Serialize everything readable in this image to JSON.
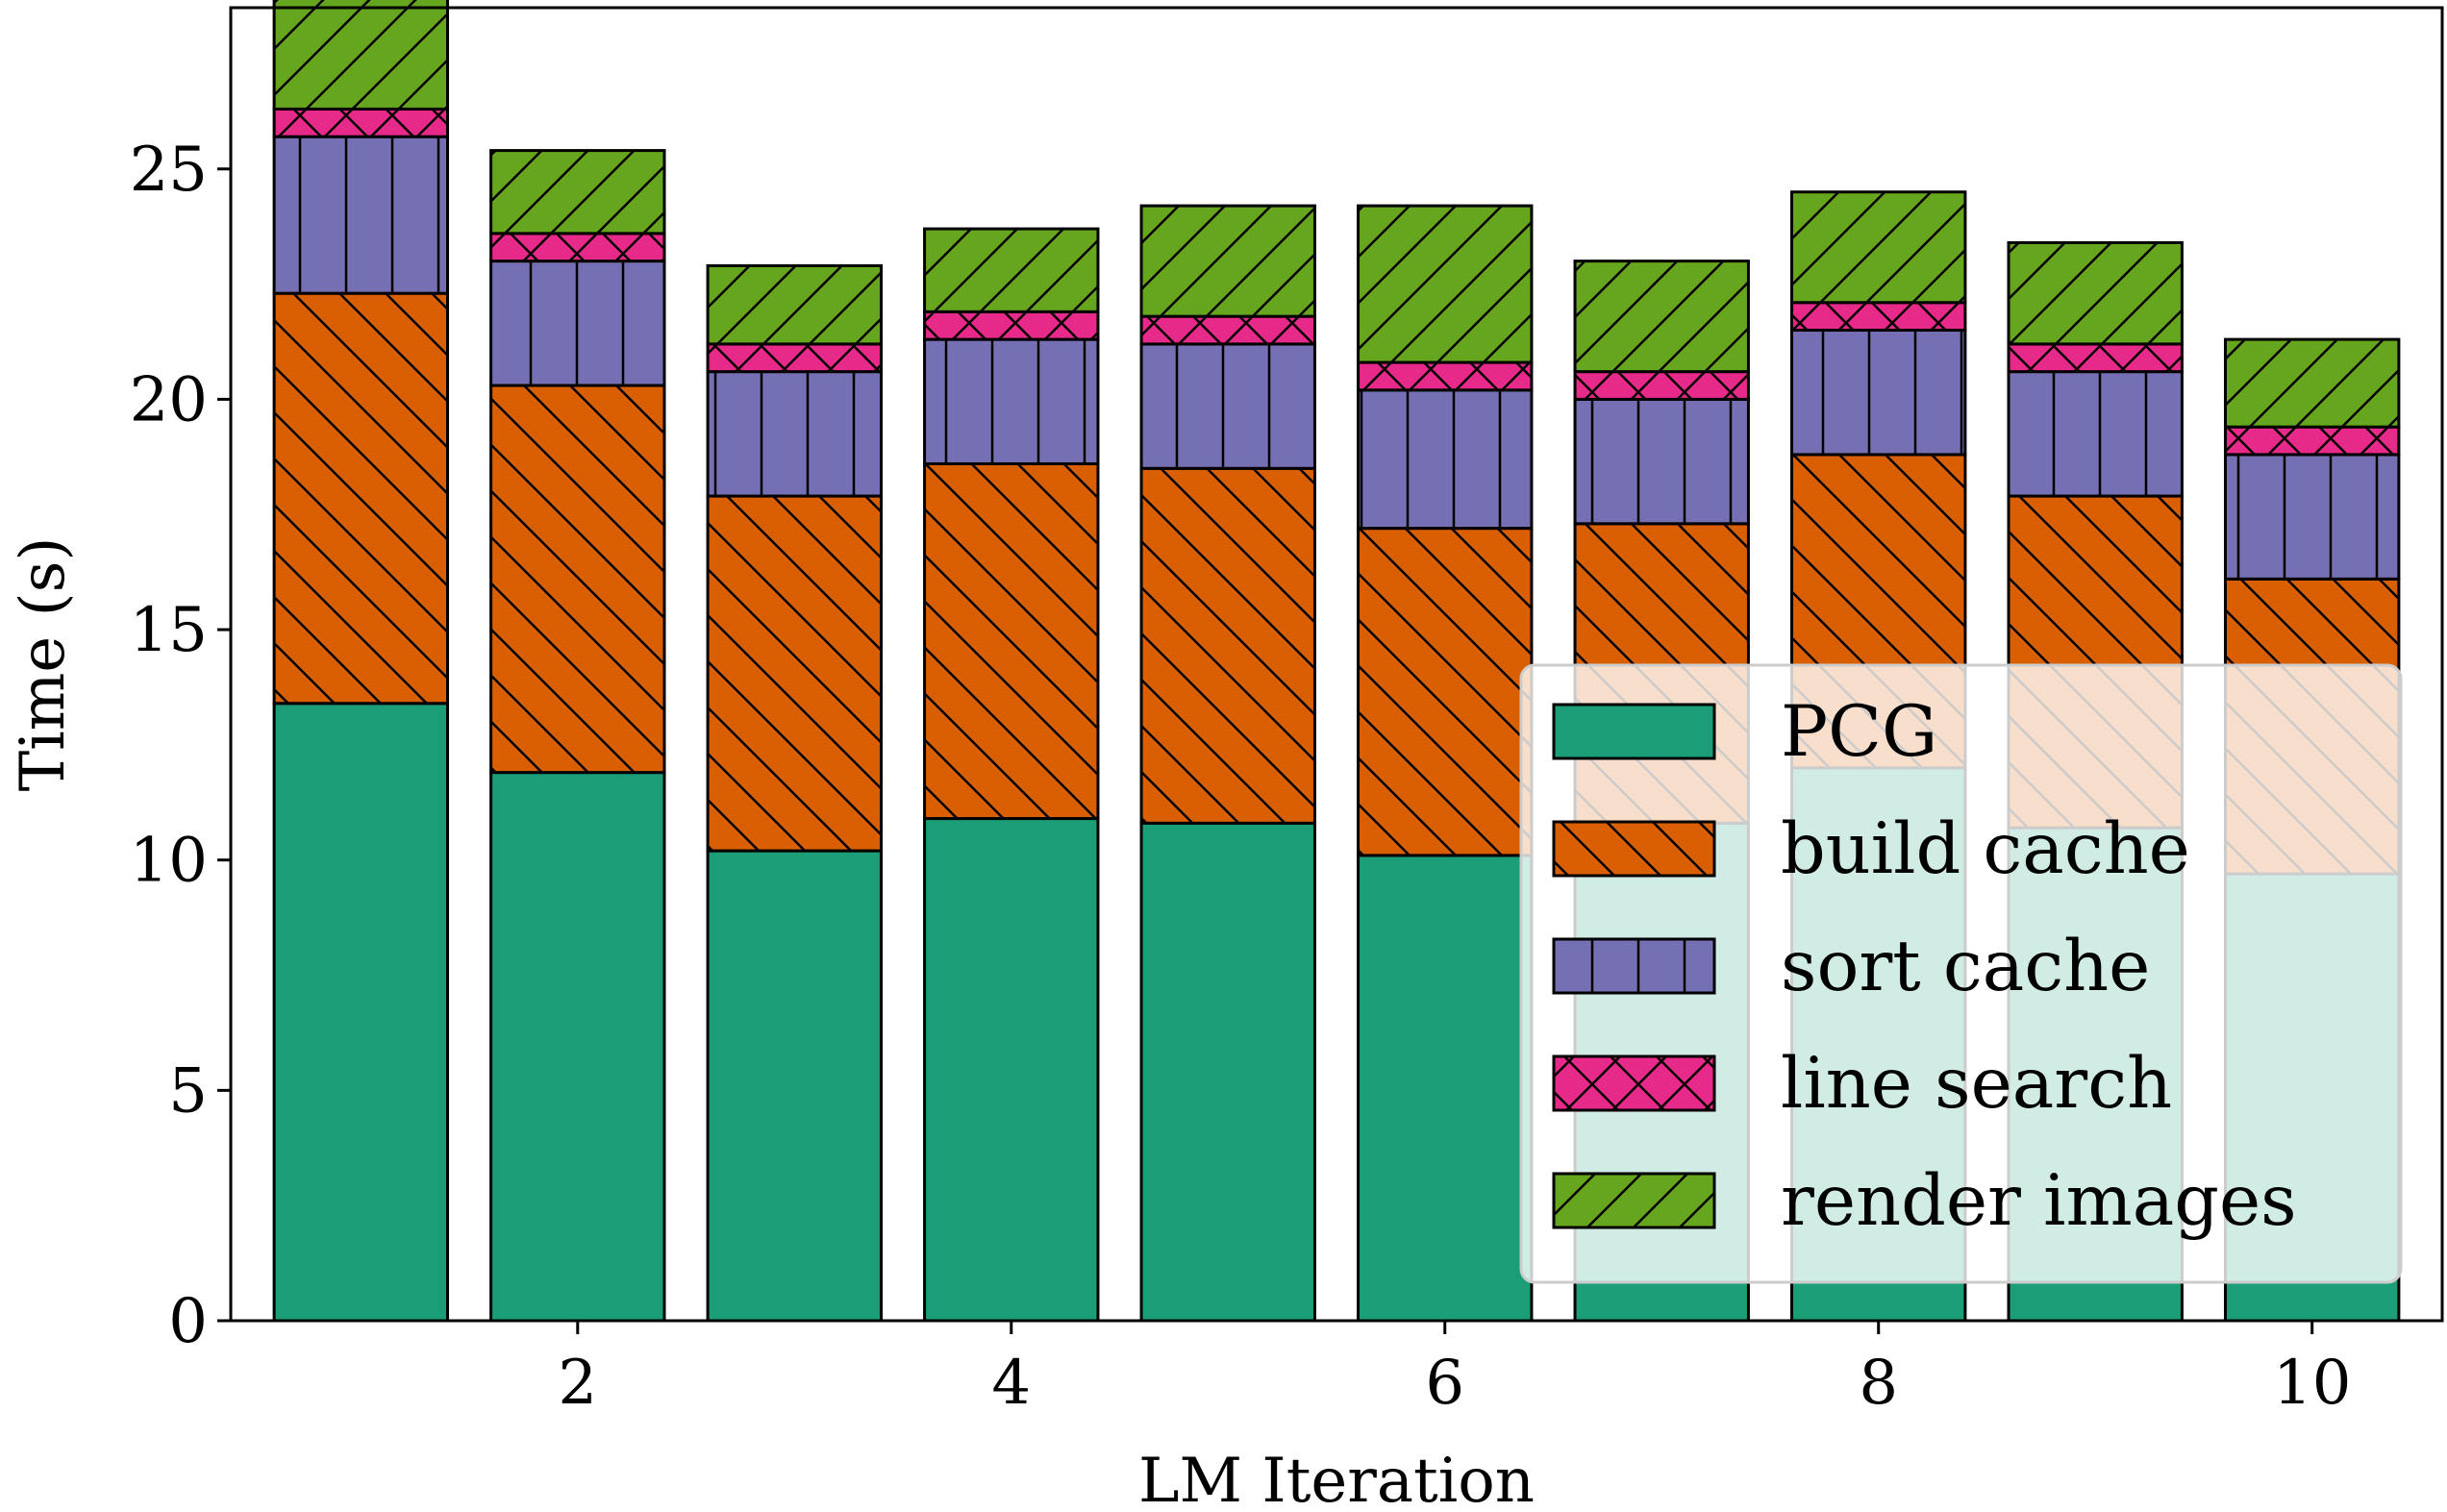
{
  "chart_data": {
    "type": "bar",
    "stacked": true,
    "title": "",
    "xlabel": "LM Iteration",
    "ylabel": "Time (s)",
    "x": [
      1,
      2,
      3,
      4,
      5,
      6,
      7,
      8,
      9,
      10
    ],
    "xticks": [
      2,
      4,
      6,
      8,
      10
    ],
    "xlim": [
      0.4,
      10.6
    ],
    "yticks": [
      0,
      5,
      10,
      15,
      20,
      25
    ],
    "ylim": [
      0,
      28.5
    ],
    "legend_position": "lower-right",
    "series": [
      {
        "name": "PCG",
        "color": "#1b9e77",
        "hatch": "none",
        "values": [
          13.4,
          11.9,
          10.2,
          10.9,
          10.8,
          10.1,
          10.8,
          12.0,
          10.7,
          9.7
        ]
      },
      {
        "name": "build cache",
        "color": "#d95f02",
        "hatch": "backslash",
        "values": [
          8.9,
          8.4,
          7.7,
          7.7,
          7.7,
          7.1,
          6.5,
          6.8,
          7.2,
          6.4
        ]
      },
      {
        "name": "sort cache",
        "color": "#7570b3",
        "hatch": "vertical",
        "values": [
          3.4,
          2.7,
          2.7,
          2.7,
          2.7,
          3.0,
          2.7,
          2.7,
          2.7,
          2.7
        ]
      },
      {
        "name": "line search",
        "color": "#e7298a",
        "hatch": "cross",
        "values": [
          0.6,
          0.6,
          0.6,
          0.6,
          0.6,
          0.6,
          0.6,
          0.6,
          0.6,
          0.6
        ]
      },
      {
        "name": "render images",
        "color": "#66a61e",
        "hatch": "slash",
        "values": [
          2.4,
          1.8,
          1.7,
          1.8,
          2.4,
          3.4,
          2.4,
          2.4,
          2.2,
          1.9
        ]
      }
    ]
  }
}
